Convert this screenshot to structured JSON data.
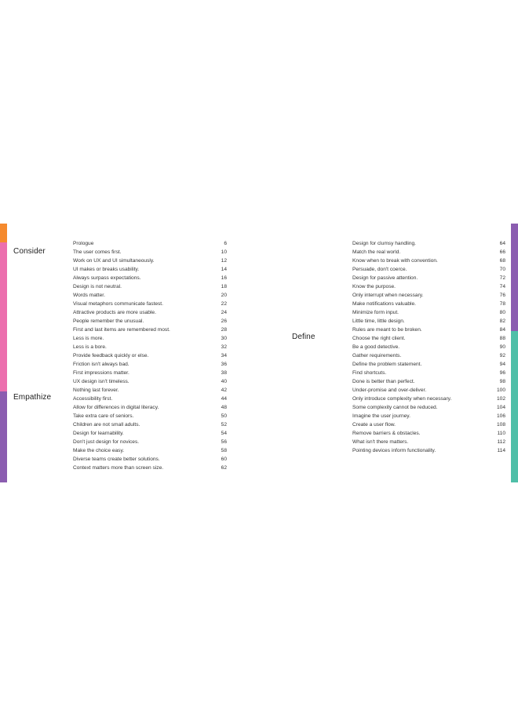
{
  "colors": {
    "consider_orange": "#F58A2E",
    "consider_pink": "#EC6FAE",
    "empathize_purple": "#8B5DB0",
    "define_purple": "#8B5DB0",
    "define_teal": "#4FBFA8"
  },
  "sections": {
    "consider": "Consider",
    "empathize": "Empathize",
    "define": "Define"
  },
  "left_toc": [
    {
      "title": "Prologue",
      "page": "6"
    },
    {
      "title": "The user comes first.",
      "page": "10"
    },
    {
      "title": "Work on UX and UI simultaneously.",
      "page": "12"
    },
    {
      "title": "UI makes or breaks usability.",
      "page": "14"
    },
    {
      "title": "Always surpass expectations.",
      "page": "16"
    },
    {
      "title": "Design is not neutral.",
      "page": "18"
    },
    {
      "title": "Words matter.",
      "page": "20"
    },
    {
      "title": "Visual metaphors communicate fastest.",
      "page": "22"
    },
    {
      "title": "Attractive products are more usable.",
      "page": "24"
    },
    {
      "title": "People remember the unusual.",
      "page": "26"
    },
    {
      "title": "First and last items are remembered most.",
      "page": "28"
    },
    {
      "title": "Less is more.",
      "page": "30"
    },
    {
      "title": "Less is a bore.",
      "page": "32"
    },
    {
      "title": "Provide feedback quickly or else.",
      "page": "34"
    },
    {
      "title": "Friction isn't always bad.",
      "page": "36"
    },
    {
      "title": "First impressions matter.",
      "page": "38"
    },
    {
      "title": "UX design isn't timeless.",
      "page": "40"
    },
    {
      "title": "Nothing last forever.",
      "page": "42"
    },
    {
      "title": "Accessibility first.",
      "page": "44"
    },
    {
      "title": "Allow for differences in digital literacy.",
      "page": "48"
    },
    {
      "title": "Take extra care of seniors.",
      "page": "50"
    },
    {
      "title": "Children are not small adults.",
      "page": "52"
    },
    {
      "title": "Design for learnability.",
      "page": "54"
    },
    {
      "title": "Don't just design for novices.",
      "page": "56"
    },
    {
      "title": "Make the choice easy.",
      "page": "58"
    },
    {
      "title": "Diverse teams create better solutions.",
      "page": "60"
    },
    {
      "title": "Context matters more than screen size.",
      "page": "62"
    }
  ],
  "right_toc": [
    {
      "title": "Design for clumsy handling.",
      "page": "64"
    },
    {
      "title": "Match the real world.",
      "page": "66"
    },
    {
      "title": "Know when to break with convention.",
      "page": "68"
    },
    {
      "title": "Persuade, don't coerce.",
      "page": "70"
    },
    {
      "title": "Design for passive attention.",
      "page": "72"
    },
    {
      "title": "Know the purpose.",
      "page": "74"
    },
    {
      "title": "Only interrupt when necessary.",
      "page": "76"
    },
    {
      "title": "Make notifications valuable.",
      "page": "78"
    },
    {
      "title": "Minimize form input.",
      "page": "80"
    },
    {
      "title": "Little time, little design.",
      "page": "82"
    },
    {
      "title": "Rules are meant to be broken.",
      "page": "84"
    },
    {
      "title": "Choose the right client.",
      "page": "88"
    },
    {
      "title": "Be a good detective.",
      "page": "90"
    },
    {
      "title": "Gather requirements.",
      "page": "92"
    },
    {
      "title": "Define the problem statement.",
      "page": "94"
    },
    {
      "title": "Find shortcuts.",
      "page": "96"
    },
    {
      "title": "Done is better than perfect.",
      "page": "98"
    },
    {
      "title": "Under-promise and over-deliver.",
      "page": "100"
    },
    {
      "title": "Only introduce complexity when necessary.",
      "page": "102"
    },
    {
      "title": "Some complexity cannot be reduced.",
      "page": "104"
    },
    {
      "title": "Imagine the user journey.",
      "page": "106"
    },
    {
      "title": "Create a user flow.",
      "page": "108"
    },
    {
      "title": "Remove barriers & obstacles.",
      "page": "110"
    },
    {
      "title": "What isn't there matters.",
      "page": "112"
    },
    {
      "title": "Pointing devices inform functionality.",
      "page": "114"
    }
  ]
}
